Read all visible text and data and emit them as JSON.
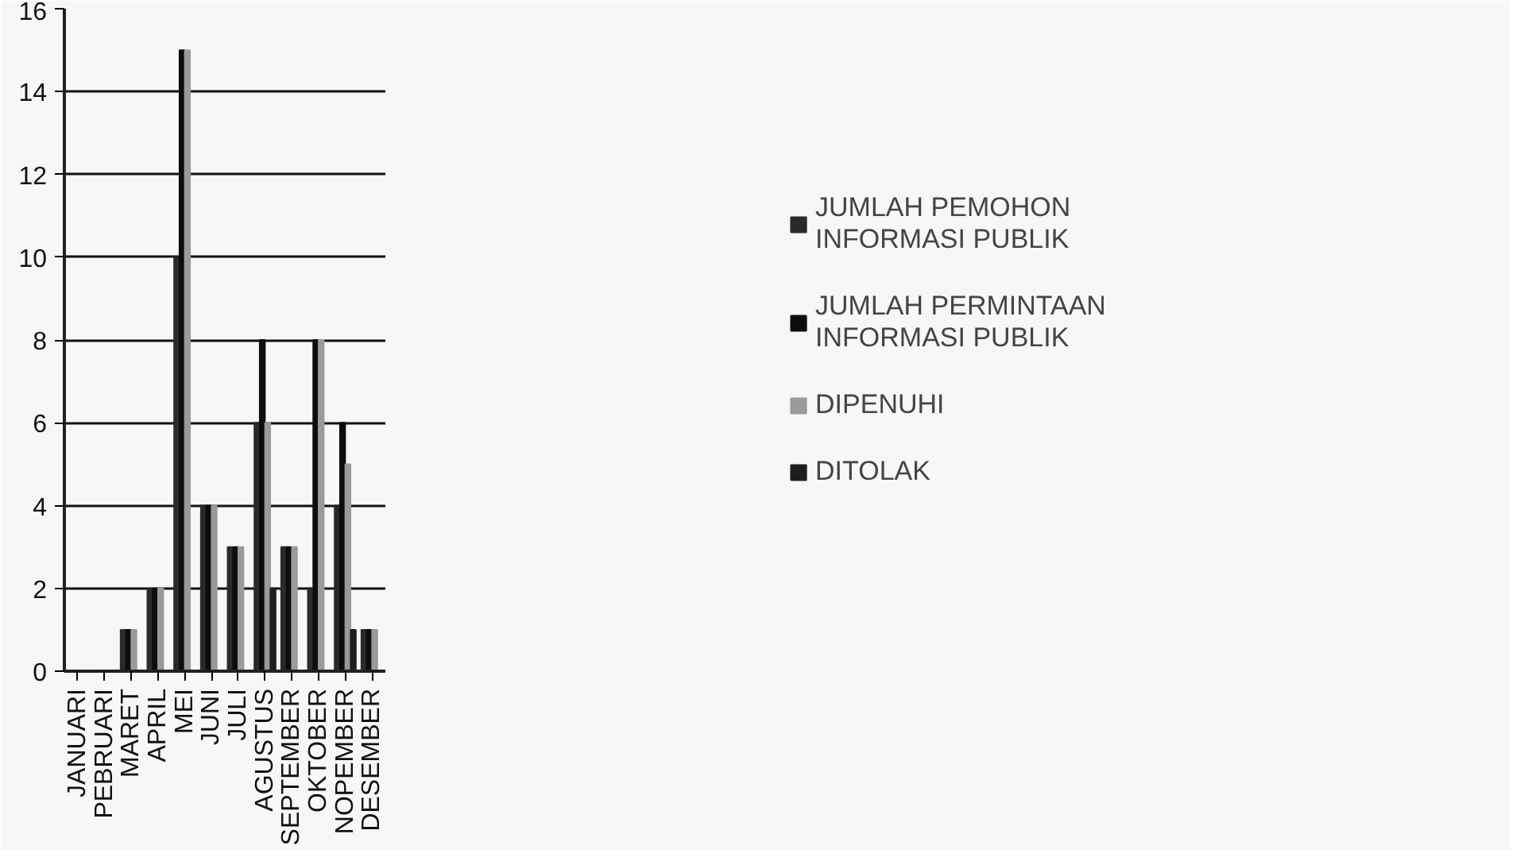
{
  "chart_data": {
    "type": "bar",
    "categories": [
      "JANUARI",
      "PEBRUARI",
      "MARET",
      "APRIL",
      "MEI",
      "JUNI",
      "JULI",
      "AGUSTUS",
      "SEPTEMBER",
      "OKTOBER",
      "NOPEMBER",
      "DESEMBER"
    ],
    "series": [
      {
        "name": "JUMLAH PEMOHON INFORMASI PUBLIK",
        "color": "#2a2a2a",
        "values": [
          0,
          0,
          1,
          2,
          10,
          4,
          3,
          6,
          3,
          2,
          4,
          1
        ]
      },
      {
        "name": "JUMLAH PERMINTAAN INFORMASI PUBLIK",
        "color": "#0d0d0d",
        "values": [
          0,
          0,
          1,
          2,
          15,
          4,
          3,
          8,
          3,
          8,
          6,
          1
        ]
      },
      {
        "name": "DIPENUHI",
        "color": "#9a9a9a",
        "values": [
          0,
          0,
          1,
          2,
          15,
          4,
          3,
          6,
          3,
          8,
          5,
          1
        ]
      },
      {
        "name": "DITOLAK",
        "color": "#1e1e1e",
        "values": [
          0,
          0,
          0,
          0,
          0,
          0,
          0,
          2,
          0,
          0,
          1,
          0
        ]
      }
    ],
    "ylim": [
      0,
      16
    ],
    "yticks": [
      0,
      2,
      4,
      6,
      8,
      10,
      12,
      14,
      16
    ],
    "grid": "y",
    "legend": "right"
  }
}
